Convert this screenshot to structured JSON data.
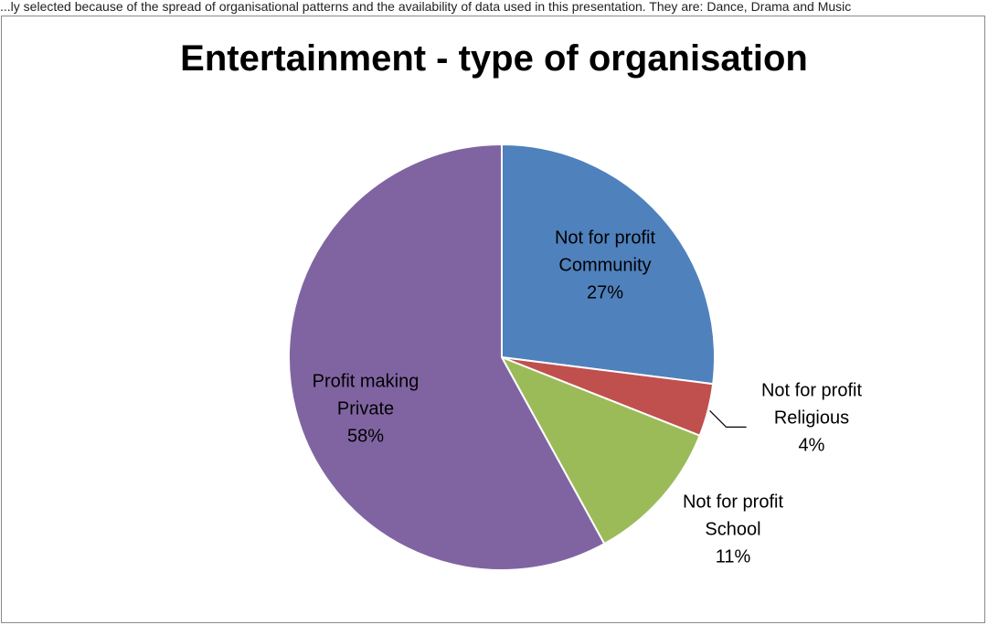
{
  "caption": "...ly selected because of the spread of organisational patterns and the availability of data used in this presentation. They are: Dance, Drama and Music",
  "chart_data": {
    "type": "pie",
    "title": "Entertainment - type of organisation",
    "slices": [
      {
        "name": "Community",
        "category": "Not for profit",
        "value": 27,
        "label": "27%",
        "color": "#4F81BD"
      },
      {
        "name": "Religious",
        "category": "Not for profit",
        "value": 4,
        "label": "4%",
        "color": "#C0504D"
      },
      {
        "name": "School",
        "category": "Not for profit",
        "value": 11,
        "label": "11%",
        "color": "#9BBB59"
      },
      {
        "name": "Private",
        "category": "Profit making",
        "value": 58,
        "label": "58%",
        "color": "#8064A2"
      }
    ]
  }
}
